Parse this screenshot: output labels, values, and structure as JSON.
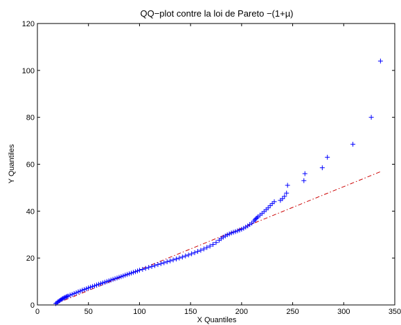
{
  "chart_data": {
    "type": "scatter",
    "title": "QQ−plot contre la loi de Pareto −(1+µ)",
    "xlabel": "X Quantiles",
    "ylabel": "Y Quantiles",
    "xlim": [
      0,
      350
    ],
    "ylim": [
      0,
      120
    ],
    "xticks": [
      0,
      50,
      100,
      150,
      200,
      250,
      300,
      350
    ],
    "yticks": [
      0,
      20,
      40,
      60,
      80,
      100,
      120
    ],
    "grid": false,
    "colors": {
      "points": "#0000ff",
      "reference_line": "#cc0000"
    },
    "reference_line": {
      "x": [
        18,
        337
      ],
      "y": [
        0.5,
        57
      ]
    },
    "series": [
      {
        "marker": "plus",
        "x": [
          18,
          19,
          20,
          21,
          22,
          23,
          24,
          25,
          26,
          27,
          28,
          29,
          30,
          32,
          34,
          36,
          38,
          40,
          42,
          44,
          46,
          48,
          50,
          52,
          54,
          56,
          58,
          60,
          62,
          64,
          66,
          68,
          70,
          72,
          74,
          76,
          78,
          80,
          82,
          84,
          86,
          88,
          90,
          92,
          94,
          96,
          98,
          100,
          103,
          106,
          109,
          112,
          115,
          118,
          121,
          124,
          127,
          130,
          133,
          136,
          139,
          142,
          145,
          148,
          151,
          154,
          157,
          160,
          163,
          166,
          169,
          172,
          175,
          178,
          180,
          182,
          184,
          186,
          188,
          190,
          192,
          194,
          196,
          198,
          200,
          202,
          204,
          206,
          208,
          210,
          212,
          213,
          214,
          215,
          216,
          218,
          220,
          222,
          224,
          226,
          228,
          230,
          232,
          238,
          240,
          242,
          244,
          245,
          261,
          262,
          279,
          284,
          309,
          327,
          336
        ],
        "y": [
          0.6,
          0.9,
          1.3,
          1.6,
          1.9,
          2.2,
          2.5,
          2.8,
          3.0,
          3.2,
          3.4,
          3.6,
          3.8,
          4.2,
          4.5,
          4.9,
          5.2,
          5.6,
          5.9,
          6.3,
          6.6,
          6.9,
          7.3,
          7.6,
          7.9,
          8.2,
          8.5,
          8.8,
          9.1,
          9.4,
          9.7,
          10.0,
          10.3,
          10.6,
          10.9,
          11.2,
          11.5,
          11.8,
          12.1,
          12.4,
          12.7,
          13.0,
          13.3,
          13.6,
          13.9,
          14.2,
          14.5,
          14.8,
          15.2,
          15.6,
          16.0,
          16.4,
          16.8,
          17.2,
          17.6,
          18.0,
          18.4,
          18.8,
          19.2,
          19.6,
          20.0,
          20.4,
          20.9,
          21.3,
          21.8,
          22.3,
          22.8,
          23.3,
          23.9,
          24.5,
          25.1,
          25.8,
          26.6,
          27.6,
          28.3,
          28.9,
          29.4,
          29.9,
          30.3,
          30.7,
          31.0,
          31.3,
          31.6,
          31.9,
          32.3,
          32.7,
          33.2,
          33.7,
          34.3,
          34.9,
          35.7,
          36.3,
          36.8,
          37.1,
          37.6,
          38.3,
          39.0,
          39.8,
          40.6,
          41.4,
          42.3,
          43.2,
          44.0,
          44.6,
          45.3,
          46.3,
          47.7,
          51.0,
          53.0,
          56.0,
          58.5,
          63.0,
          68.5,
          80.0,
          104.0
        ]
      }
    ]
  }
}
